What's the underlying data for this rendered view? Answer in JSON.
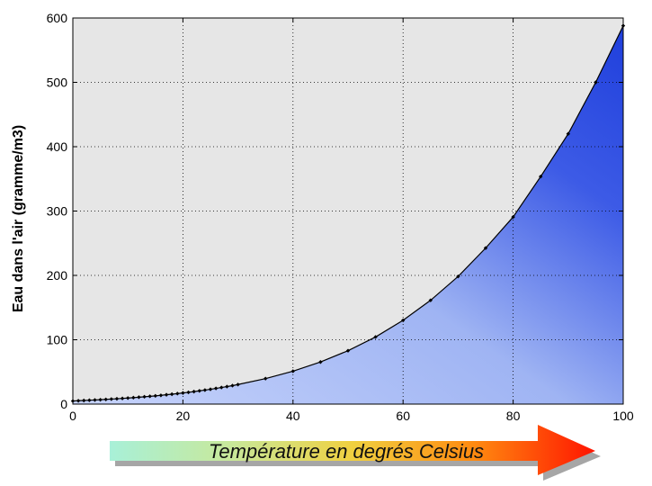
{
  "chart_data": {
    "type": "area",
    "ylabel": "Eau dans l'air (gramme/m3)",
    "xlabel": "Température en degrés Celsius",
    "xlim": [
      0,
      100
    ],
    "ylim": [
      0,
      600
    ],
    "xticks": [
      0,
      20,
      40,
      60,
      80,
      100
    ],
    "yticks": [
      0,
      100,
      200,
      300,
      400,
      500,
      600
    ],
    "grid": true,
    "x": [
      0,
      1,
      2,
      3,
      4,
      5,
      6,
      7,
      8,
      9,
      10,
      11,
      12,
      13,
      14,
      15,
      16,
      17,
      18,
      19,
      20,
      21,
      22,
      23,
      24,
      25,
      26,
      27,
      28,
      29,
      30,
      35,
      40,
      45,
      50,
      55,
      60,
      65,
      70,
      75,
      80,
      85,
      90,
      95,
      100
    ],
    "y": [
      4.8,
      5.2,
      5.6,
      6.0,
      6.4,
      6.8,
      7.3,
      7.8,
      8.3,
      8.8,
      9.4,
      10.0,
      10.7,
      11.4,
      12.1,
      12.8,
      13.6,
      14.5,
      15.4,
      16.3,
      17.3,
      18.3,
      19.4,
      20.6,
      21.8,
      23.0,
      24.4,
      25.8,
      27.2,
      28.7,
      30.4,
      39.6,
      51.1,
      65.4,
      83.0,
      104.3,
      130.2,
      161.3,
      198.4,
      242.5,
      290.8,
      353.6,
      420.0,
      500.0,
      588.0
    ],
    "colors": {
      "plot_background": "#e6e6e6",
      "fill_light": "#b4c6f6",
      "fill_dark": "#1f3fdc",
      "line": "#000000",
      "arrow_start": "#a8f0d8",
      "arrow_end": "#ff1400"
    }
  }
}
